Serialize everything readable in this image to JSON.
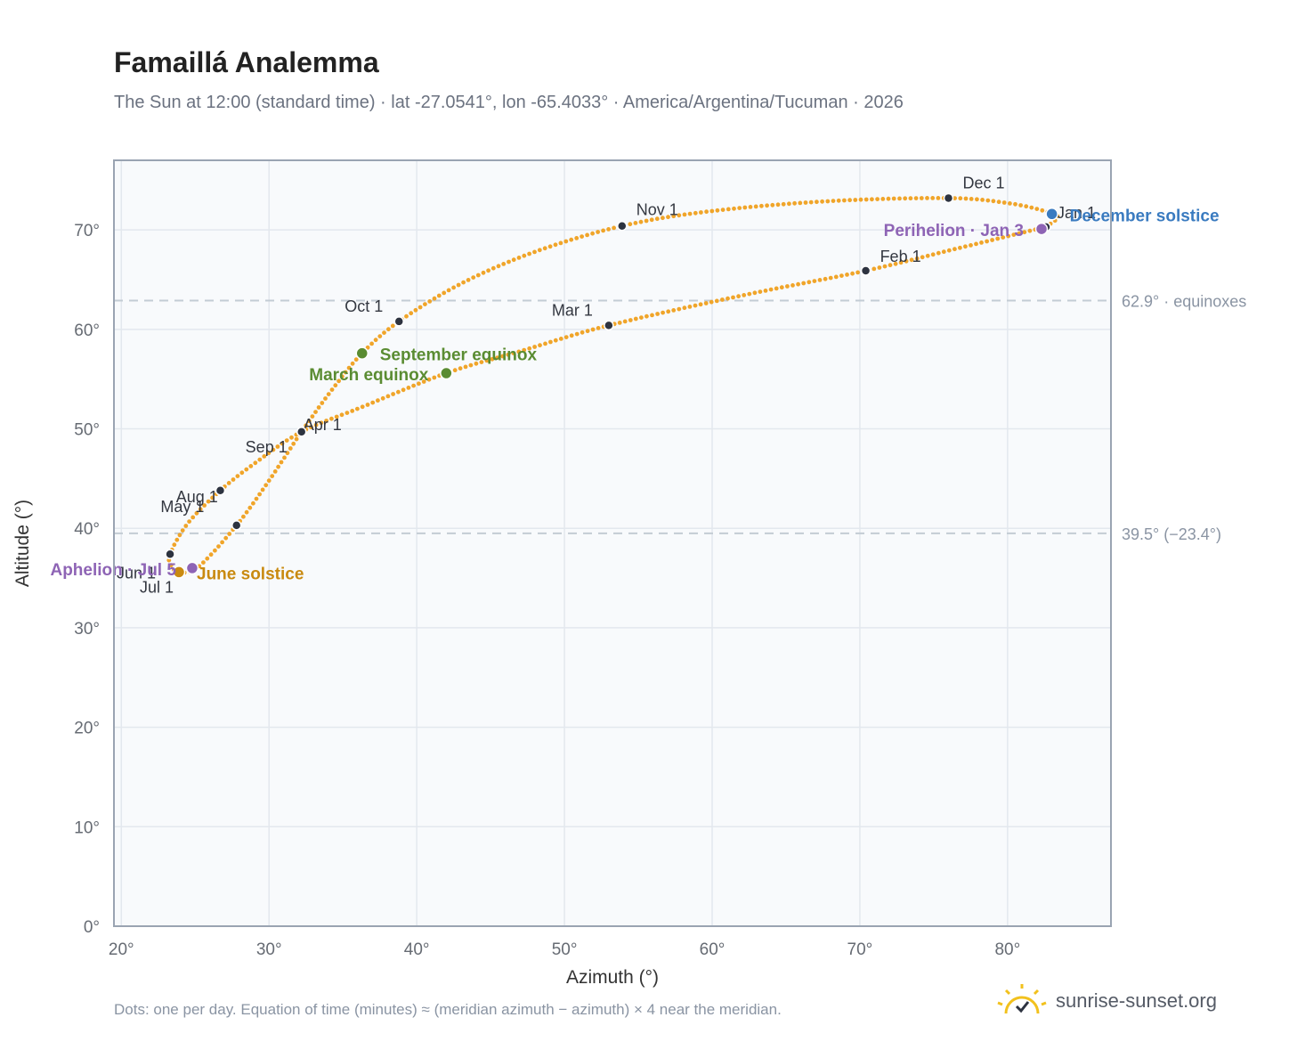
{
  "title": "Famaillá Analemma",
  "subtitle": "The Sun at 12:00 (standard time) · lat -27.0541°, lon -65.4033° · America/Argentina/Tucuman · 2026",
  "footnote": "Dots: one per day. Equation of time (minutes) ≈ (meridian azimuth − azimuth) × 4 near the meridian.",
  "brand": "sunrise-sunset.org",
  "colors": {
    "curve": "#f0a52a",
    "month_marker": "#2d3340",
    "equinox": "#5a8c32",
    "june_solstice": "#c98a10",
    "december_solstice": "#3a7bc0",
    "apsis": "#8e64b5",
    "reference_line": "#c3ccd4",
    "plot_bg": "#f8fafc",
    "grid": "#e3e8ee",
    "frame": "#9aa4b2"
  },
  "chart_data": {
    "type": "scatter",
    "xlabel": "Azimuth (°)",
    "ylabel": "Altitude (°)",
    "xlim": [
      19.5,
      87
    ],
    "ylim": [
      0,
      77
    ],
    "x_ticks": [
      20,
      30,
      40,
      50,
      60,
      70,
      80
    ],
    "x_tick_labels": [
      "20°",
      "30°",
      "40°",
      "50°",
      "60°",
      "70°",
      "80°"
    ],
    "y_ticks": [
      0,
      10,
      20,
      30,
      40,
      50,
      60,
      70
    ],
    "y_tick_labels": [
      "0°",
      "10°",
      "20°",
      "30°",
      "40°",
      "50°",
      "60°",
      "70°"
    ],
    "grid": true,
    "reference_lines": [
      {
        "y": 62.9,
        "label": "62.9° · equinoxes"
      },
      {
        "y": 39.5,
        "label": "39.5° (−23.4°)"
      }
    ],
    "month_points": [
      {
        "label": "Jan 1",
        "x": 82.6,
        "y": 70.3
      },
      {
        "label": "Feb 1",
        "x": 70.4,
        "y": 65.9
      },
      {
        "label": "Mar 1",
        "x": 53.0,
        "y": 60.4
      },
      {
        "label": "Apr 1",
        "x": 32.2,
        "y": 49.7
      },
      {
        "label": "May 1",
        "x": 26.7,
        "y": 43.8
      },
      {
        "label": "Jun 1",
        "x": 23.3,
        "y": 37.4
      },
      {
        "label": "Jul 1",
        "x": 23.9,
        "y": 35.6
      },
      {
        "label": "Aug 1",
        "x": 27.8,
        "y": 40.3
      },
      {
        "label": "Sep 1",
        "x": 32.2,
        "y": 49.7
      },
      {
        "label": "Oct 1",
        "x": 38.8,
        "y": 60.8
      },
      {
        "label": "Nov 1",
        "x": 53.9,
        "y": 70.4
      },
      {
        "label": "Dec 1",
        "x": 76.0,
        "y": 73.2
      }
    ],
    "events": [
      {
        "label": "March equinox",
        "x": 42.0,
        "y": 55.6,
        "kind": "equinox"
      },
      {
        "label": "September equinox",
        "x": 36.3,
        "y": 57.6,
        "kind": "equinox"
      },
      {
        "label": "June solstice",
        "x": 23.9,
        "y": 35.6,
        "kind": "june_solstice"
      },
      {
        "label": "December solstice",
        "x": 83.0,
        "y": 71.6,
        "kind": "december_solstice"
      },
      {
        "label": "Perihelion · Jan 3",
        "x": 82.3,
        "y": 70.1,
        "kind": "apsis"
      },
      {
        "label": "Aphelion · Jul 5",
        "x": 24.8,
        "y": 36.0,
        "kind": "apsis"
      }
    ],
    "daily_path_anchors": [
      {
        "x": 82.6,
        "y": 70.3
      },
      {
        "x": 76.5,
        "y": 68.1
      },
      {
        "x": 70.4,
        "y": 65.9
      },
      {
        "x": 62.0,
        "y": 63.4
      },
      {
        "x": 53.0,
        "y": 60.4
      },
      {
        "x": 47.0,
        "y": 57.8
      },
      {
        "x": 42.0,
        "y": 55.6
      },
      {
        "x": 36.3,
        "y": 52.2
      },
      {
        "x": 32.2,
        "y": 49.7
      },
      {
        "x": 29.0,
        "y": 46.5
      },
      {
        "x": 26.7,
        "y": 43.8
      },
      {
        "x": 24.5,
        "y": 40.5
      },
      {
        "x": 23.3,
        "y": 37.4
      },
      {
        "x": 23.4,
        "y": 36.2
      },
      {
        "x": 23.9,
        "y": 35.6
      },
      {
        "x": 25.2,
        "y": 36.1
      },
      {
        "x": 27.8,
        "y": 40.3
      },
      {
        "x": 30.0,
        "y": 44.8
      },
      {
        "x": 32.2,
        "y": 49.7
      },
      {
        "x": 34.3,
        "y": 54.0
      },
      {
        "x": 36.3,
        "y": 57.6
      },
      {
        "x": 38.8,
        "y": 60.8
      },
      {
        "x": 43.0,
        "y": 64.6
      },
      {
        "x": 48.0,
        "y": 67.8
      },
      {
        "x": 53.9,
        "y": 70.4
      },
      {
        "x": 60.0,
        "y": 71.9
      },
      {
        "x": 68.0,
        "y": 72.9
      },
      {
        "x": 76.0,
        "y": 73.2
      },
      {
        "x": 80.0,
        "y": 72.7
      },
      {
        "x": 82.5,
        "y": 71.9
      },
      {
        "x": 83.4,
        "y": 71.3
      },
      {
        "x": 82.6,
        "y": 70.3
      }
    ]
  }
}
